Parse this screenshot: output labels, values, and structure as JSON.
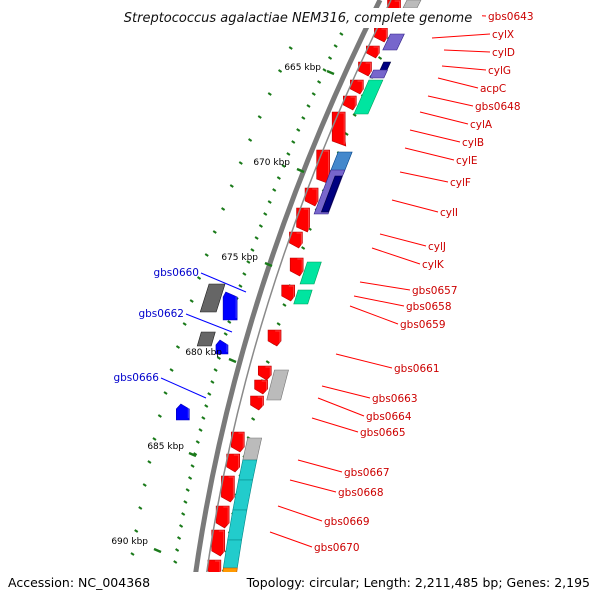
{
  "title": "Streptococcus agalactiae NEM316, complete genome",
  "footer": {
    "accession": "Accession: NC_004368",
    "topology": "Topology: circular; Length: 2,211,485 bp; Genes: 2,195"
  },
  "colors": {
    "forward_strand": "#ff0000",
    "reverse_strand": "#0000ff",
    "backbone": "#777777",
    "tick": "#1a7a1a",
    "cog_green": "#00e5a0",
    "cog_teal": "#22cccc",
    "cog_purple": "#7766cc",
    "cog_navy": "#000080",
    "cog_gray": "#bbbbbb",
    "cog_orange": "#ff9900"
  },
  "kbp_marks": [
    "665 kbp",
    "670 kbp",
    "675 kbp",
    "680 kbp",
    "685 kbp",
    "690 kbp"
  ],
  "labels_right": [
    "gbs0643",
    "cylX",
    "cylD",
    "cylG",
    "acpC",
    "gbs0648",
    "cylA",
    "cylB",
    "cylE",
    "cylF",
    "cylI",
    "cylJ",
    "cylK",
    "gbs0657",
    "gbs0658",
    "gbs0659",
    "gbs0661",
    "gbs0663",
    "gbs0664",
    "gbs0665",
    "gbs0667",
    "gbs0668",
    "gbs0669",
    "gbs0670"
  ],
  "labels_left": [
    "gbs0660",
    "gbs0662",
    "gbs0666"
  ]
}
